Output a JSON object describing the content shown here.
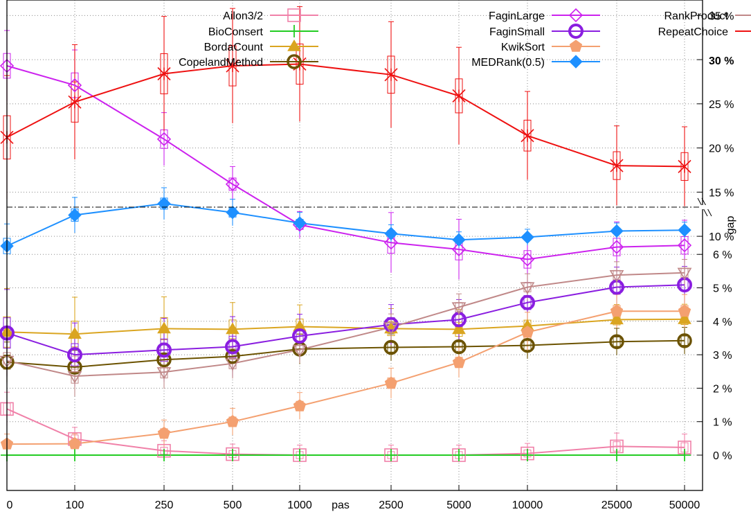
{
  "chart_data": {
    "type": "line",
    "x": [
      0,
      100,
      250,
      500,
      1000,
      2500,
      5000,
      10000,
      25000,
      50000
    ],
    "x_tick_labels": [
      "0",
      "100",
      "250",
      "500",
      "1000",
      "2500",
      "5000",
      "10000",
      "25000",
      "50000"
    ],
    "x_extra_label": "pas",
    "y_axis_side": "right",
    "y_scale": "broken: 0-7 % linear below the gap, 7.5-37 % linear above",
    "y_lower_ticks": [
      0,
      1,
      2,
      3,
      4,
      5,
      6
    ],
    "y_upper_ticks": [
      10,
      15,
      20,
      25,
      30,
      35
    ],
    "y_lower_tick_labels": [
      "0 %",
      "1 %",
      "2 %",
      "3 %",
      "4 %",
      "5 %",
      "6 %"
    ],
    "y_upper_tick_labels": [
      "10 %",
      "15 %",
      "20 %",
      "25 %",
      "30 %",
      "35 %"
    ],
    "y_highlight_label": "30 %",
    "gap_label": "gap",
    "grid": "dotted horizontal and vertical",
    "legend_placement": "top, three columns",
    "series": [
      {
        "name": "Ailon3/2",
        "color": "#f080a8",
        "marker": "square-open",
        "values": [
          1.38,
          0.48,
          0.13,
          0.03,
          0.0,
          0.0,
          0.0,
          0.05,
          0.26,
          0.23
        ],
        "errors": [
          0.5,
          0.35,
          0.3,
          0.3,
          0.3,
          0.3,
          0.3,
          0.3,
          0.4,
          0.4
        ]
      },
      {
        "name": "BioConsert",
        "color": "#22cc22",
        "marker": "plus",
        "values": [
          0.0,
          0.0,
          0.0,
          0.0,
          0.0,
          0.0,
          0.0,
          0.0,
          0.0,
          0.0
        ],
        "errors": [
          0,
          0,
          0,
          0,
          0,
          0,
          0,
          0,
          0,
          0
        ]
      },
      {
        "name": "BordaCount",
        "color": "#daa520",
        "marker": "triangle-filled",
        "values": [
          3.68,
          3.62,
          3.78,
          3.76,
          3.84,
          3.78,
          3.76,
          3.86,
          4.05,
          4.06
        ],
        "errors": [
          1.3,
          1.1,
          0.95,
          0.8,
          0.65,
          0.6,
          0.6,
          0.5,
          0.45,
          0.45
        ]
      },
      {
        "name": "CopelandMethod",
        "color": "#6b5200",
        "marker": "circle-open",
        "values": [
          2.78,
          2.63,
          2.85,
          2.95,
          3.17,
          3.22,
          3.24,
          3.28,
          3.39,
          3.42
        ],
        "errors": [
          0.6,
          0.5,
          0.5,
          0.45,
          0.45,
          0.4,
          0.4,
          0.4,
          0.4,
          0.4
        ]
      },
      {
        "name": "FaginLarge",
        "color": "#cc22ee",
        "marker": "diamond-open",
        "values": [
          29.3,
          27.1,
          21.0,
          15.9,
          11.3,
          6.35,
          6.15,
          5.85,
          6.22,
          6.27
        ],
        "errors": [
          4.0,
          4.0,
          3.0,
          2.0,
          1.5,
          0.9,
          0.9,
          0.75,
          0.75,
          0.75
        ]
      },
      {
        "name": "FaginSmall",
        "color": "#8a1ee0",
        "marker": "circle-open-thick",
        "values": [
          3.65,
          3.0,
          3.14,
          3.24,
          3.56,
          3.9,
          4.05,
          4.56,
          5.02,
          5.09
        ],
        "errors": [
          1.3,
          0.95,
          0.95,
          0.9,
          0.65,
          0.6,
          0.6,
          0.6,
          0.6,
          0.55
        ]
      },
      {
        "name": "KwikSort",
        "color": "#f4a070",
        "marker": "pentagon-filled",
        "values": [
          0.33,
          0.34,
          0.65,
          1.0,
          1.47,
          2.15,
          2.77,
          3.67,
          4.3,
          4.3
        ],
        "errors": [
          0.3,
          0.3,
          0.4,
          0.4,
          0.4,
          0.45,
          0.45,
          0.6,
          0.5,
          0.5
        ]
      },
      {
        "name": "MEDRank(0.5)",
        "color": "#1e90ff",
        "marker": "diamond-filled",
        "values": [
          8.9,
          12.4,
          13.7,
          12.7,
          11.5,
          10.3,
          9.6,
          9.9,
          10.6,
          10.7
        ],
        "errors": [
          2.5,
          2.0,
          1.8,
          1.5,
          1.2,
          1.0,
          0.9,
          0.9,
          0.9,
          0.9
        ]
      },
      {
        "name": "RankProduct",
        "color": "#c08888",
        "marker": "triangle-down-open",
        "values": [
          2.82,
          2.36,
          2.48,
          2.74,
          3.15,
          3.82,
          4.42,
          5.02,
          5.38,
          5.45
        ],
        "errors": [
          0.7,
          0.6,
          0.5,
          0.45,
          0.4,
          0.4,
          0.4,
          0.4,
          0.4,
          0.4
        ]
      },
      {
        "name": "RepeatChoice",
        "color": "#ee1111",
        "marker": "cross-star",
        "values": [
          21.2,
          25.2,
          28.4,
          29.3,
          29.5,
          28.3,
          25.9,
          21.4,
          18.0,
          17.9
        ],
        "errors": [
          7.0,
          6.5,
          6.5,
          6.5,
          6.5,
          6.0,
          5.5,
          5.0,
          4.5,
          4.5
        ]
      }
    ]
  }
}
